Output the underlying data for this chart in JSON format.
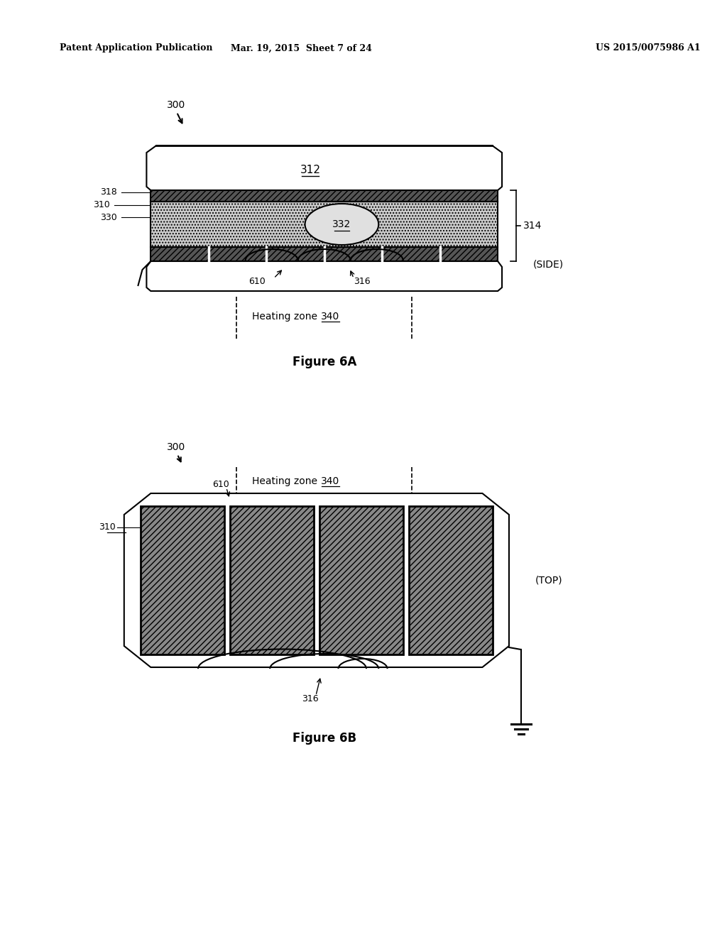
{
  "bg_color": "#ffffff",
  "header_left": "Patent Application Publication",
  "header_center": "Mar. 19, 2015  Sheet 7 of 24",
  "header_right": "US 2015/0075986 A1",
  "fig6a_label": "Figure 6A",
  "fig6b_label": "Figure 6B",
  "label_300_a": "300",
  "label_300_b": "300",
  "label_312": "312",
  "label_318": "318",
  "label_310": "310",
  "label_330": "330",
  "label_332": "332",
  "label_314": "314",
  "label_side": "(SIDE)",
  "label_610_a": "610",
  "label_316_a": "316",
  "label_hz_a": "Heating zone",
  "label_340_a": "340",
  "label_hz_b": "Heating zone",
  "label_340_b": "340",
  "label_610_b": "610",
  "label_310_b": "310",
  "label_316_b": "316",
  "label_top": "(TOP)",
  "line_color": "#000000",
  "line_width": 1.5
}
